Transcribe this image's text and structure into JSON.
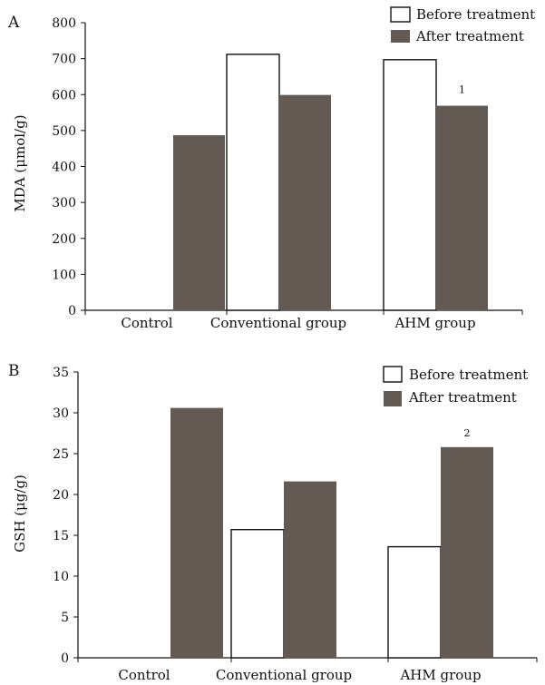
{
  "colors": {
    "before_fill": "#ffffff",
    "after_fill": "#625a53",
    "bar_stroke": "#111111",
    "axis": "#111111"
  },
  "chart_data": [
    {
      "type": "bar",
      "panel_label": "A",
      "ylabel": "MDA (μmol/g)",
      "xlabel": "",
      "categories": [
        "Control",
        "Conventional group",
        "AHM group"
      ],
      "ylim": [
        0,
        800
      ],
      "yticks": [
        0,
        100,
        200,
        300,
        400,
        500,
        600,
        700,
        800
      ],
      "series": [
        {
          "name": "Before treatment",
          "values": [
            null,
            712,
            697
          ]
        },
        {
          "name": "After treatment",
          "values": [
            487,
            599,
            569
          ]
        }
      ],
      "annotations": [
        {
          "text": "1",
          "category": "AHM group",
          "series": "After treatment"
        }
      ],
      "legend": "top-right",
      "grid": false
    },
    {
      "type": "bar",
      "panel_label": "B",
      "ylabel": "GSH (μg/g)",
      "xlabel": "",
      "categories": [
        "Control",
        "Conventional group",
        "AHM group"
      ],
      "ylim": [
        0,
        35
      ],
      "yticks": [
        0,
        5,
        10,
        15,
        20,
        25,
        30,
        35
      ],
      "series": [
        {
          "name": "Before treatment",
          "values": [
            null,
            15.7,
            13.6
          ]
        },
        {
          "name": "After treatment",
          "values": [
            30.6,
            21.6,
            25.8
          ]
        }
      ],
      "annotations": [
        {
          "text": "2",
          "category": "AHM group",
          "series": "After treatment"
        }
      ],
      "legend": "top-right",
      "grid": false
    }
  ]
}
